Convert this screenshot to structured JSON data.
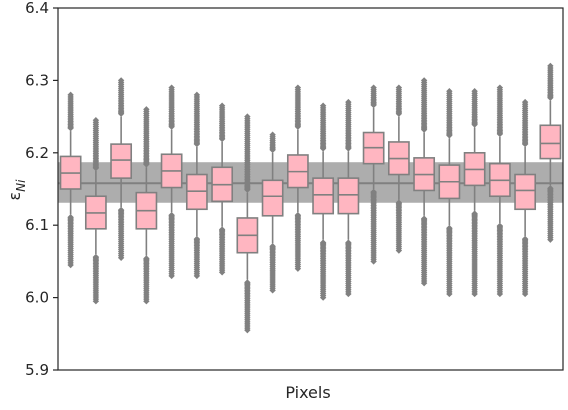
{
  "chart_data": {
    "type": "box",
    "xlabel": "Pixels",
    "ylabel_main": "ε",
    "ylabel_sub": "Ni",
    "ylim": [
      5.9,
      6.4
    ],
    "yticks": [
      "5.9",
      "6.0",
      "6.1",
      "6.2",
      "6.3",
      "6.4"
    ],
    "reference_band": {
      "center": 6.158,
      "low": 6.131,
      "high": 6.187
    },
    "colors": {
      "box_fill": "#ffb6c1",
      "box_edge": "#808080",
      "whisker": "#808080",
      "flier": "#808080",
      "band": "#a9a9a9",
      "center_line": "#808080",
      "axes": "#262626"
    },
    "boxes": [
      {
        "q1": 6.15,
        "median": 6.172,
        "q3": 6.195,
        "wlo": 6.115,
        "whi": 6.23,
        "fmin": 6.045,
        "fmax": 6.28
      },
      {
        "q1": 6.095,
        "median": 6.117,
        "q3": 6.14,
        "wlo": 6.06,
        "whi": 6.175,
        "fmin": 5.995,
        "fmax": 6.245
      },
      {
        "q1": 6.165,
        "median": 6.19,
        "q3": 6.212,
        "wlo": 6.125,
        "whi": 6.25,
        "fmin": 6.055,
        "fmax": 6.3
      },
      {
        "q1": 6.095,
        "median": 6.12,
        "q3": 6.145,
        "wlo": 6.058,
        "whi": 6.18,
        "fmin": 5.995,
        "fmax": 6.26
      },
      {
        "q1": 6.152,
        "median": 6.175,
        "q3": 6.198,
        "wlo": 6.118,
        "whi": 6.232,
        "fmin": 6.03,
        "fmax": 6.29
      },
      {
        "q1": 6.122,
        "median": 6.147,
        "q3": 6.17,
        "wlo": 6.085,
        "whi": 6.208,
        "fmin": 6.03,
        "fmax": 6.28
      },
      {
        "q1": 6.133,
        "median": 6.156,
        "q3": 6.18,
        "wlo": 6.098,
        "whi": 6.215,
        "fmin": 6.035,
        "fmax": 6.265
      },
      {
        "q1": 6.062,
        "median": 6.086,
        "q3": 6.11,
        "wlo": 6.025,
        "whi": 6.145,
        "fmin": 5.955,
        "fmax": 6.25
      },
      {
        "q1": 6.113,
        "median": 6.14,
        "q3": 6.162,
        "wlo": 6.075,
        "whi": 6.2,
        "fmin": 6.01,
        "fmax": 6.225
      },
      {
        "q1": 6.152,
        "median": 6.174,
        "q3": 6.197,
        "wlo": 6.118,
        "whi": 6.232,
        "fmin": 6.04,
        "fmax": 6.29
      },
      {
        "q1": 6.116,
        "median": 6.142,
        "q3": 6.165,
        "wlo": 6.08,
        "whi": 6.202,
        "fmin": 6.0,
        "fmax": 6.265
      },
      {
        "q1": 6.116,
        "median": 6.142,
        "q3": 6.165,
        "wlo": 6.08,
        "whi": 6.202,
        "fmin": 6.005,
        "fmax": 6.27
      },
      {
        "q1": 6.185,
        "median": 6.207,
        "q3": 6.228,
        "wlo": 6.15,
        "whi": 6.262,
        "fmin": 6.05,
        "fmax": 6.29
      },
      {
        "q1": 6.17,
        "median": 6.192,
        "q3": 6.215,
        "wlo": 6.135,
        "whi": 6.25,
        "fmin": 6.065,
        "fmax": 6.29
      },
      {
        "q1": 6.148,
        "median": 6.17,
        "q3": 6.193,
        "wlo": 6.113,
        "whi": 6.228,
        "fmin": 6.02,
        "fmax": 6.3
      },
      {
        "q1": 6.137,
        "median": 6.16,
        "q3": 6.183,
        "wlo": 6.1,
        "whi": 6.22,
        "fmin": 6.005,
        "fmax": 6.285
      },
      {
        "q1": 6.155,
        "median": 6.177,
        "q3": 6.2,
        "wlo": 6.12,
        "whi": 6.235,
        "fmin": 6.005,
        "fmax": 6.285
      },
      {
        "q1": 6.14,
        "median": 6.162,
        "q3": 6.185,
        "wlo": 6.103,
        "whi": 6.222,
        "fmin": 6.005,
        "fmax": 6.29
      },
      {
        "q1": 6.122,
        "median": 6.148,
        "q3": 6.17,
        "wlo": 6.085,
        "whi": 6.208,
        "fmin": 6.005,
        "fmax": 6.27
      },
      {
        "q1": 6.192,
        "median": 6.213,
        "q3": 6.238,
        "wlo": 6.155,
        "whi": 6.272,
        "fmin": 6.08,
        "fmax": 6.32
      }
    ]
  }
}
